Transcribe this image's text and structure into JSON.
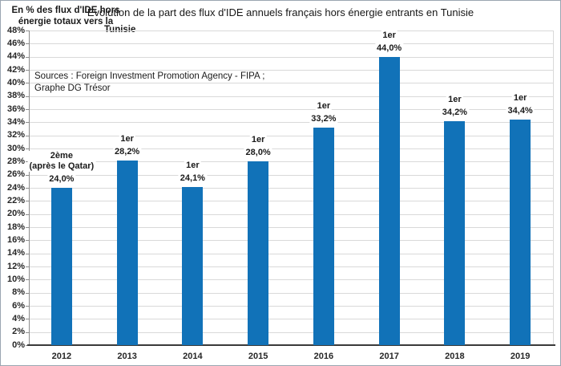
{
  "chart_data": {
    "type": "bar",
    "title": "Evolution de la part des flux d'IDE annuels français hors énergie entrants en Tunisie",
    "ylabel_lines": [
      "En % des flux d'IDE hors",
      "énergie totaux vers la"
    ],
    "ylabel_inner": "Tunisie",
    "sources_lines": [
      "Sources : Foreign Investment Promotion Agency - FIPA ;",
      "Graphe DG Trésor"
    ],
    "categories": [
      "2012",
      "2013",
      "2014",
      "2015",
      "2016",
      "2017",
      "2018",
      "2019"
    ],
    "values": [
      24.0,
      28.2,
      24.1,
      28.0,
      33.2,
      44.0,
      34.2,
      34.4
    ],
    "value_labels": [
      "24,0%",
      "28,2%",
      "24,1%",
      "28,0%",
      "33,2%",
      "44,0%",
      "34,2%",
      "34,4%"
    ],
    "rank_labels": [
      [
        "2ème",
        "(après le Qatar)"
      ],
      [
        "1er"
      ],
      [
        "1er"
      ],
      [
        "1er"
      ],
      [
        "1er"
      ],
      [
        "1er"
      ],
      [
        "1er"
      ],
      [
        "1er"
      ]
    ],
    "ylim": [
      0,
      48
    ],
    "ytick_step": 2,
    "ytick_suffix": "%",
    "grid": true,
    "legend": "none",
    "bar_color": "#1172b8",
    "gridline_color": "#d9d9d9",
    "axis_line_color": "#3a3a3a",
    "text_color": "#1a1a1a"
  }
}
